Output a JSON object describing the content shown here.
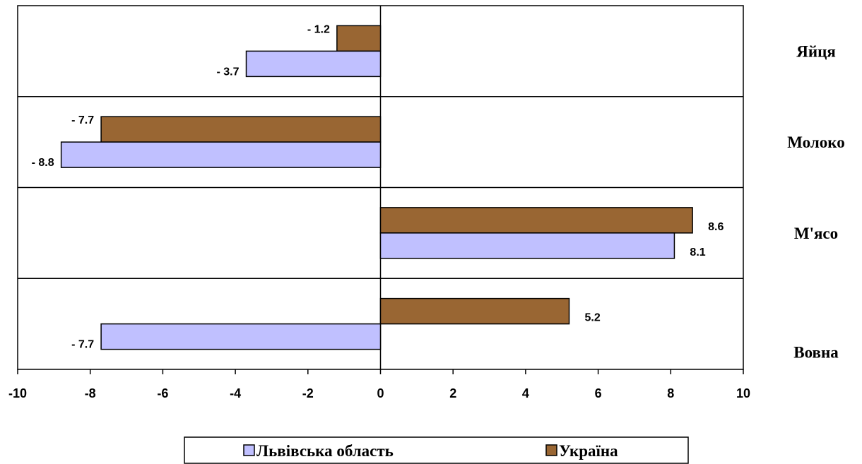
{
  "chart_data": {
    "type": "bar",
    "orientation": "horizontal",
    "categories": [
      "Яйця",
      "Молоко",
      "М'ясо",
      "Вовна"
    ],
    "series": [
      {
        "name": "Львівська область",
        "values": [
          -3.7,
          -8.8,
          8.1,
          -7.7
        ],
        "color": "#c0c0ff",
        "labels": [
          "- 3.7",
          "- 8.8",
          "8.1",
          "- 7.7"
        ]
      },
      {
        "name": "Україна",
        "values": [
          -1.2,
          -7.7,
          8.6,
          5.2
        ],
        "color": "#996633",
        "labels": [
          "- 1.2",
          "- 7.7",
          "8.6",
          "5.2"
        ]
      }
    ],
    "xlim": [
      -10,
      10
    ],
    "xticks": [
      "-10",
      "-8",
      "-6",
      "-4",
      "-2",
      "0",
      "2",
      "4",
      "6",
      "8",
      "10"
    ],
    "title": "",
    "xlabel": "",
    "ylabel": "",
    "grid": "horizontal separators",
    "legend_position": "bottom"
  }
}
